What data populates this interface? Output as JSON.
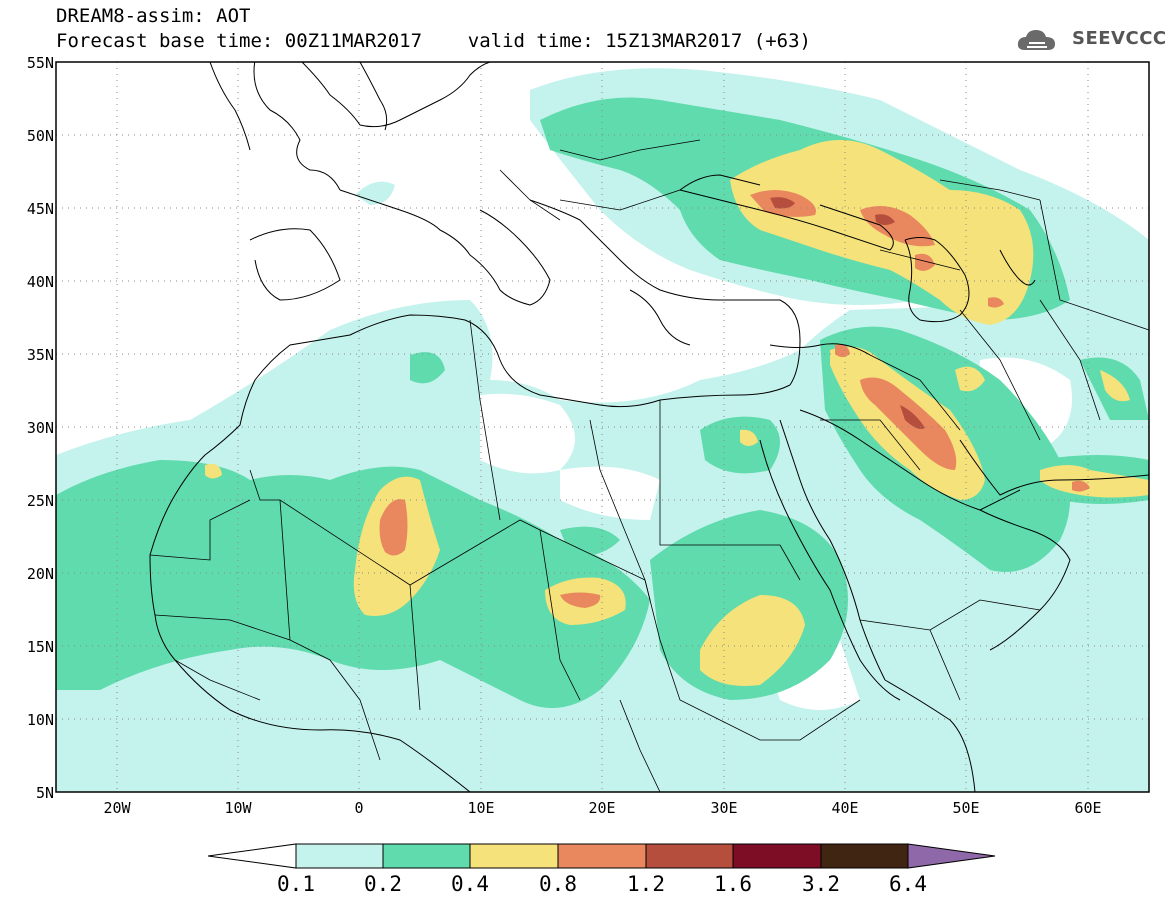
{
  "header": {
    "line1": "DREAM8-assim: AOT",
    "line2": "Forecast base time: 00Z11MAR2017    valid time: 15Z13MAR2017 (+63)",
    "logo_text": "SEEVCCC"
  },
  "map": {
    "lat_labels": [
      "55N",
      "50N",
      "45N",
      "40N",
      "35N",
      "30N",
      "25N",
      "20N",
      "15N",
      "10N",
      "5N"
    ],
    "lon_labels": [
      "20W",
      "10W",
      "0",
      "10E",
      "20E",
      "30E",
      "40E",
      "50E",
      "60E"
    ],
    "lon_range": [
      -25,
      65
    ],
    "lat_range": [
      5,
      55
    ]
  },
  "colorbar": {
    "labels": [
      "0.1",
      "0.2",
      "0.4",
      "0.8",
      "1.2",
      "1.6",
      "3.2",
      "6.4"
    ],
    "colors": [
      "#ffffff",
      "#c4f2ec",
      "#5fdbad",
      "#f5e27a",
      "#e9875e",
      "#b64e3d",
      "#7d0c25",
      "#3f2512",
      "#8e68a8"
    ]
  },
  "field_colors": {
    "low": "#c4f2ec",
    "mid": "#5fdbad",
    "high": "#f5e27a",
    "orange": "#e9875e",
    "red": "#b64e3d"
  }
}
